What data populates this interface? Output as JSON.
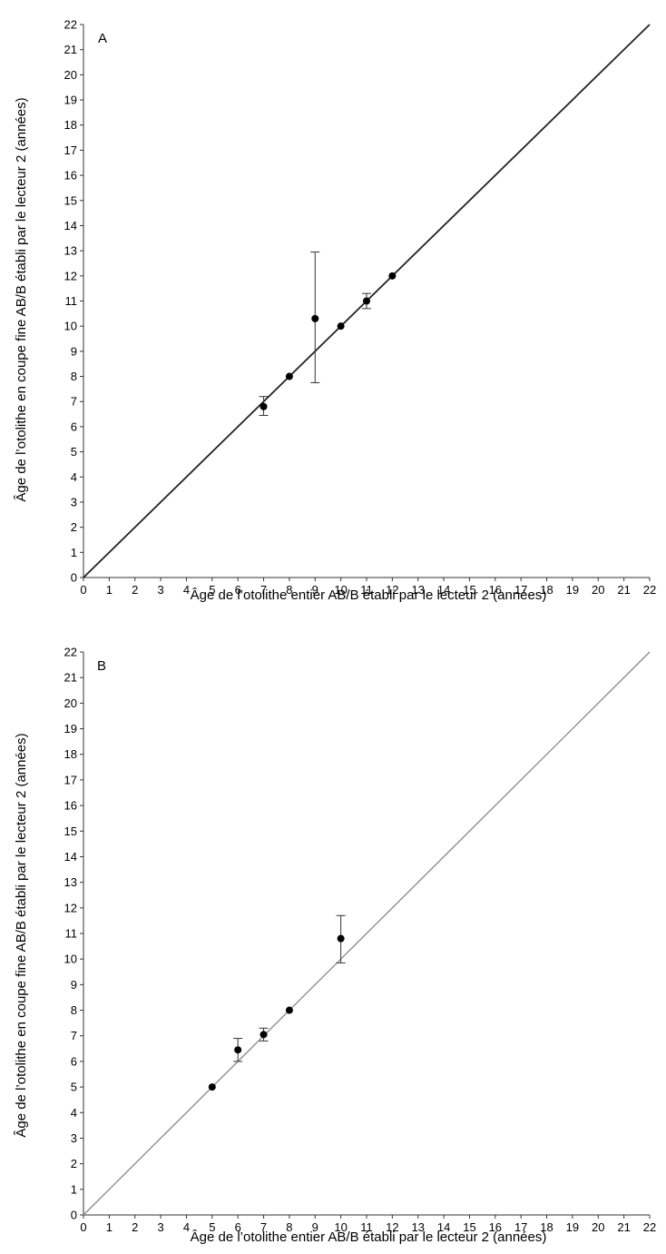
{
  "chart_data": [
    {
      "type": "scatter",
      "panel_label": "A",
      "xlabel": "Âge de l’otolithe entier AB/B établi par le lecteur 2 (années)",
      "ylabel": "Âge de l’otolithe en coupe fine AB/B établi par le lecteur 2 (années)",
      "xlim": [
        0,
        22
      ],
      "ylim": [
        0,
        22
      ],
      "x_ticks": [
        "0",
        "1",
        "2",
        "3",
        "4",
        "5",
        "6",
        "7",
        "8",
        "9",
        "10",
        "11",
        "12",
        "13",
        "14",
        "15",
        "16",
        "17",
        "18",
        "19",
        "20",
        "21",
        "22"
      ],
      "y_ticks": [
        "0",
        "1",
        "2",
        "3",
        "4",
        "5",
        "6",
        "7",
        "8",
        "9",
        "10",
        "11",
        "12",
        "13",
        "14",
        "15",
        "16",
        "17",
        "18",
        "19",
        "20",
        "21",
        "22"
      ],
      "grid": false,
      "reference_line": {
        "from": [
          0,
          0
        ],
        "to": [
          22,
          22
        ],
        "color": "#222222"
      },
      "points": [
        {
          "x": 7,
          "y": 6.8,
          "err_low": 6.45,
          "err_high": 7.2
        },
        {
          "x": 8,
          "y": 8.0,
          "err_low": 8.0,
          "err_high": 8.0
        },
        {
          "x": 9,
          "y": 10.3,
          "err_low": 7.75,
          "err_high": 12.95
        },
        {
          "x": 10,
          "y": 10.0,
          "err_low": 10.0,
          "err_high": 10.0
        },
        {
          "x": 11,
          "y": 11.0,
          "err_low": 10.7,
          "err_high": 11.3
        },
        {
          "x": 12,
          "y": 12.0,
          "err_low": 12.0,
          "err_high": 12.0
        }
      ]
    },
    {
      "type": "scatter",
      "panel_label": "B",
      "xlabel": "Âge de l’otolithe entier AB/B établi par le lecteur 2 (années)",
      "ylabel": "Âge de l’otolithe en coupe fine AB/B établi par le lecteur 2 (années)",
      "xlim": [
        0,
        22
      ],
      "ylim": [
        0,
        22
      ],
      "x_ticks": [
        "0",
        "1",
        "2",
        "3",
        "4",
        "5",
        "6",
        "7",
        "8",
        "9",
        "10",
        "11",
        "12",
        "13",
        "14",
        "15",
        "16",
        "17",
        "18",
        "19",
        "20",
        "21",
        "22"
      ],
      "y_ticks": [
        "0",
        "1",
        "2",
        "3",
        "4",
        "5",
        "6",
        "7",
        "8",
        "9",
        "10",
        "11",
        "12",
        "13",
        "14",
        "15",
        "16",
        "17",
        "18",
        "19",
        "20",
        "21",
        "22"
      ],
      "grid": false,
      "reference_line": {
        "from": [
          0,
          0
        ],
        "to": [
          22,
          22
        ],
        "color": "#888888"
      },
      "points": [
        {
          "x": 5,
          "y": 5.0,
          "err_low": 5.0,
          "err_high": 5.0
        },
        {
          "x": 6,
          "y": 6.45,
          "err_low": 6.0,
          "err_high": 6.9
        },
        {
          "x": 7,
          "y": 7.05,
          "err_low": 6.8,
          "err_high": 7.3
        },
        {
          "x": 8,
          "y": 8.0,
          "err_low": 8.0,
          "err_high": 8.0
        },
        {
          "x": 10,
          "y": 10.8,
          "err_low": 9.85,
          "err_high": 11.7
        }
      ]
    }
  ]
}
